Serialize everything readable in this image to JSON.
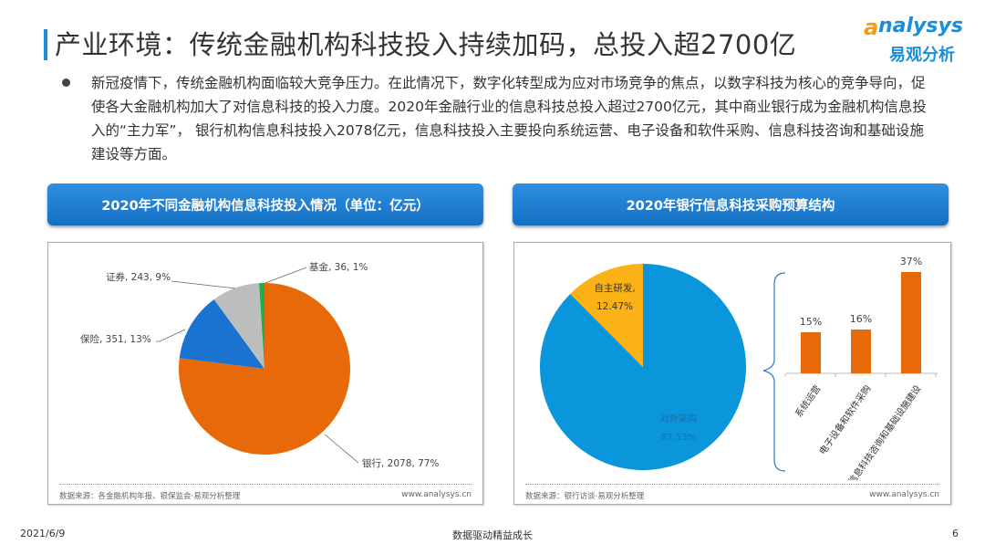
{
  "header": {
    "title": "产业环境：传统金融机构科技投入持续加码，总投入超2700亿",
    "logo_en": "nalysys",
    "logo_a": "a",
    "logo_cn": "易观分析"
  },
  "body": {
    "paragraph": "新冠疫情下，传统金融机构面临较大竞争压力。在此情况下，数字化转型成为应对市场竞争的焦点，以数字科技为核心的竞争导向，促使各大金融机构加大了对信息科技的投入力度。2020年金融行业的信息科技总投入超过2700亿元，其中商业银行成为金融机构信息投入的“主力军”， 银行机构信息科技投入2078亿元，信息科技投入主要投向系统运营、电子设备和软件采购、信息科技咨询和基础设施建设等方面。"
  },
  "left_panel": {
    "heading": "2020年不同金融机构信息科技投入情况（单位：亿元）",
    "source": "数据来源：各金融机构年报、银保监会·易观分析整理",
    "url": "www.analysys.cn"
  },
  "right_panel": {
    "heading": "2020年银行信息科技采购预算结构",
    "source": "数据来源：银行访谈·易观分析整理",
    "url": "www.analysys.cn"
  },
  "footer": {
    "date": "2021/6/9",
    "slogan": "数据驱动精益成长",
    "page": "6"
  },
  "chart_data": [
    {
      "type": "pie",
      "slices": [
        {
          "label": "银行, 2078, 77%",
          "name": "银行",
          "value": 2078,
          "percent": 77,
          "color": "#e8690a"
        },
        {
          "label": "保险, 351, 13%",
          "name": "保险",
          "value": 351,
          "percent": 13,
          "color": "#1a73d0"
        },
        {
          "label": "证券, 243, 9%",
          "name": "证券",
          "value": 243,
          "percent": 9,
          "color": "#bdbdbd"
        },
        {
          "label": "基金, 36, 1%",
          "name": "基金",
          "value": 36,
          "percent": 1,
          "color": "#1fae4f"
        }
      ]
    },
    {
      "type": "pie",
      "slices": [
        {
          "name": "对外采购",
          "pct_label": "87.53%",
          "percent": 87.53,
          "color": "#0b96dc"
        },
        {
          "name": "自主研发,",
          "pct_label": "12.47%",
          "percent": 12.47,
          "color": "#fbb216"
        }
      ]
    },
    {
      "type": "bar",
      "categories": [
        "系统运营",
        "电子设备和软件采购",
        "信息科技咨询和基础设施建设"
      ],
      "values": [
        15,
        16,
        37
      ],
      "labels": [
        "15%",
        "16%",
        "37%"
      ],
      "color": "#e8690a"
    }
  ]
}
